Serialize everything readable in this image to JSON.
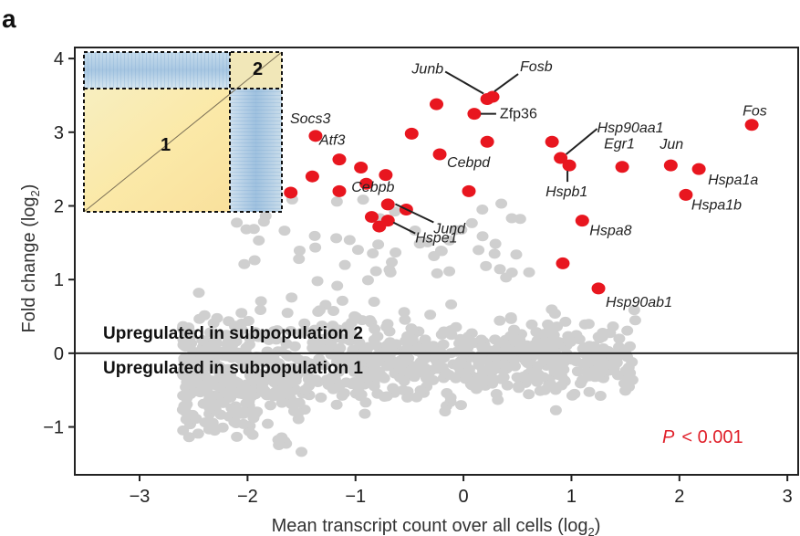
{
  "panel_letter": "a",
  "chart_data": {
    "type": "scatter",
    "title": "",
    "xlabel": "Mean transcript count over all cells (log",
    "xlabel_sub": "2",
    "xlabel_close": ")",
    "ylabel": "Fold change (log",
    "ylabel_sub": "2",
    "ylabel_close": ")",
    "xlim": [
      -3.6,
      3.1
    ],
    "ylim": [
      -1.65,
      4.15
    ],
    "xticks": [
      -3,
      -2,
      -1,
      0,
      1,
      2,
      3
    ],
    "xtick_labels": [
      "−3",
      "−2",
      "−1",
      "0",
      "1",
      "2",
      "3"
    ],
    "yticks": [
      -1,
      0,
      1,
      2,
      3,
      4
    ],
    "ytick_labels": [
      "−1",
      "0",
      "1",
      "2",
      "3",
      "4"
    ],
    "zero_line": 0,
    "region_labels": {
      "upper": "Upregulated in subpopulation 2",
      "lower": "Upregulated in subpopulation 1"
    },
    "p_value_label": "P",
    "p_value_text": "< 0.001",
    "colors": {
      "highlight": "#e8161f",
      "background_points": "#cfcfcf",
      "axis": "#222222",
      "pvalue": "#e0202a"
    },
    "inset": {
      "type": "heatmap",
      "description_labels": [
        "1",
        "2"
      ],
      "block_split_fraction": 0.74
    },
    "highlighted_genes": [
      {
        "gene": "Fos",
        "x": 2.67,
        "y": 3.1
      },
      {
        "gene": "Fosb",
        "x": 0.27,
        "y": 3.48
      },
      {
        "gene": "Junb",
        "x": 0.22,
        "y": 3.45
      },
      {
        "gene": "Zfp36",
        "x": 0.1,
        "y": 3.25
      },
      {
        "gene": "Socs3",
        "x": -1.37,
        "y": 2.95
      },
      {
        "gene": "Atf3",
        "x": -1.15,
        "y": 2.63
      },
      {
        "gene": "Cebpd",
        "x": -0.22,
        "y": 2.7
      },
      {
        "gene": "Cebpb",
        "x": -0.7,
        "y": 2.02
      },
      {
        "gene": "Jund",
        "x": -0.53,
        "y": 1.95
      },
      {
        "gene": "Hspe1",
        "x": -0.7,
        "y": 1.8
      },
      {
        "gene": "Hsp90aa1",
        "x": 0.9,
        "y": 2.65
      },
      {
        "gene": "Egr1",
        "x": 1.47,
        "y": 2.53
      },
      {
        "gene": "Jun",
        "x": 1.92,
        "y": 2.55
      },
      {
        "gene": "Hspa1a",
        "x": 2.18,
        "y": 2.5
      },
      {
        "gene": "Hspa1b",
        "x": 2.06,
        "y": 2.15
      },
      {
        "gene": "Hspb1",
        "x": 0.98,
        "y": 2.55
      },
      {
        "gene": "Hspa8",
        "x": 1.1,
        "y": 1.8
      },
      {
        "gene": "Hsp90ab1",
        "x": 1.25,
        "y": 0.88
      }
    ],
    "other_highlighted_points": [
      {
        "x": -1.6,
        "y": 2.18
      },
      {
        "x": -1.4,
        "y": 2.4
      },
      {
        "x": -1.15,
        "y": 2.2
      },
      {
        "x": -0.95,
        "y": 2.52
      },
      {
        "x": -0.72,
        "y": 2.42
      },
      {
        "x": -0.9,
        "y": 2.3
      },
      {
        "x": -0.85,
        "y": 1.85
      },
      {
        "x": -0.78,
        "y": 1.72
      },
      {
        "x": -0.48,
        "y": 2.98
      },
      {
        "x": -0.25,
        "y": 3.38
      },
      {
        "x": 0.05,
        "y": 2.2
      },
      {
        "x": 0.22,
        "y": 2.87
      },
      {
        "x": 0.82,
        "y": 2.87
      },
      {
        "x": 0.92,
        "y": 1.22
      }
    ]
  }
}
